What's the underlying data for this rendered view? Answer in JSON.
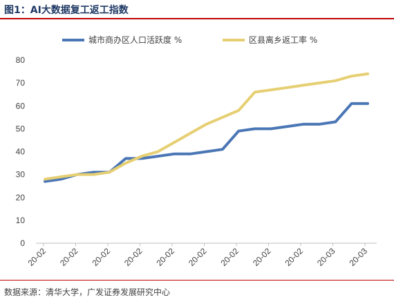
{
  "figure": {
    "title": "图1：AI大数据复工返工指数",
    "source": "数据来源：清华大学，广发证券发展研究中心"
  },
  "colors": {
    "series1": "#4a76b5",
    "series2": "#e6cf73",
    "axis": "#bfbfbf",
    "rule": "#c00000"
  },
  "chart_data": {
    "type": "line",
    "grid": false,
    "legend_position": "top",
    "ylim": [
      0,
      80
    ],
    "yticks": [
      0,
      10,
      20,
      30,
      40,
      50,
      60,
      70,
      80
    ],
    "x_tick_labels": [
      "20-02",
      "20-02",
      "20-02",
      "20-02",
      "20-02",
      "20-02",
      "20-02",
      "20-02",
      "20-02",
      "20-03",
      "20-03"
    ],
    "x_count": 21,
    "series": [
      {
        "name": "城市商办区人口活跃度 %",
        "values": [
          27,
          28,
          30,
          31,
          31,
          37,
          37,
          38,
          39,
          39,
          40,
          41,
          49,
          50,
          50,
          51,
          52,
          52,
          53,
          61,
          61
        ]
      },
      {
        "name": "区县离乡返工率 %",
        "values": [
          28,
          29,
          30,
          30,
          31,
          35,
          38,
          40,
          44,
          48,
          52,
          55,
          58,
          66,
          67,
          68,
          69,
          70,
          71,
          73,
          74
        ]
      }
    ]
  }
}
